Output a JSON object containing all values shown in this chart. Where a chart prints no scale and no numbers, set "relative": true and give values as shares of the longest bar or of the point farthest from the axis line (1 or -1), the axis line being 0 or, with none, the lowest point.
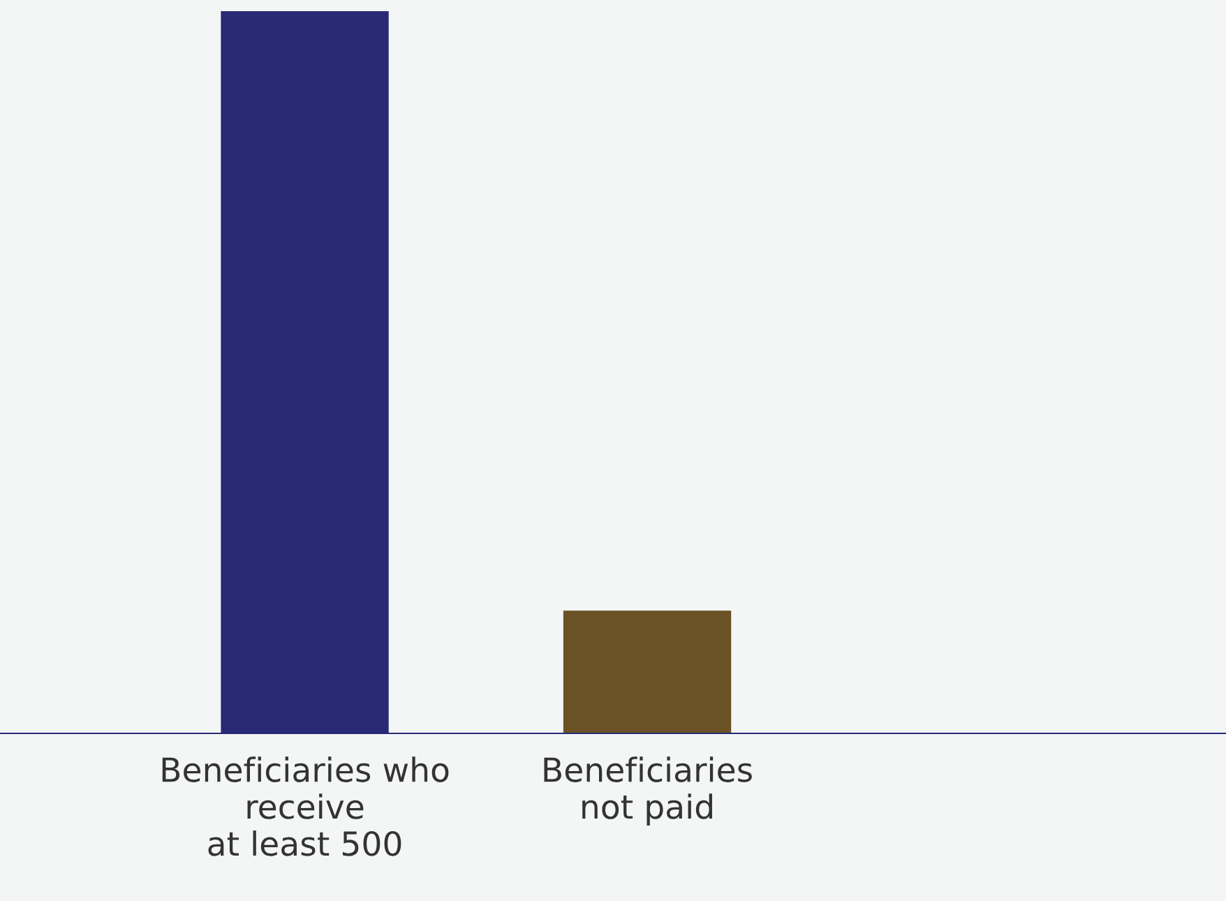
{
  "chart_data": {
    "type": "bar",
    "relative": true,
    "categories": [
      "Beneficiaries who\nreceive\nat least 500",
      "Beneficiaries\nnot paid"
    ],
    "values": [
      1,
      0.17
    ],
    "colors": [
      "#282a75",
      "#6a5226"
    ],
    "grid": false,
    "legend": false
  }
}
